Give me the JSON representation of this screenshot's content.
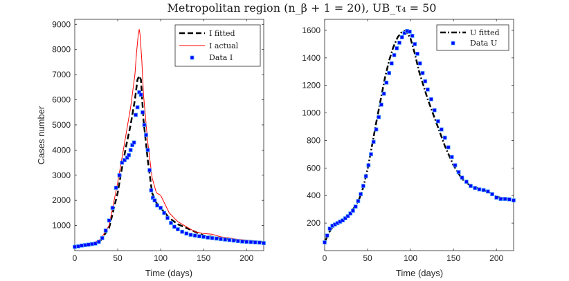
{
  "figure": {
    "title": "Metropolitan region (n_β + 1 = 20), UB_τ₄ = 50"
  },
  "chart_data": [
    {
      "type": "line",
      "xlabel": "Time (days)",
      "ylabel": "Cases number",
      "xlim": [
        0,
        220
      ],
      "ylim": [
        0,
        9200
      ],
      "xticks": [
        0,
        50,
        100,
        150,
        200
      ],
      "yticks": [
        1000,
        2000,
        3000,
        4000,
        5000,
        6000,
        7000,
        8000,
        9000
      ],
      "grid": false,
      "legend_position": "top-right",
      "series": [
        {
          "name": "I fitted",
          "style": "dashed",
          "color": "#000000",
          "x": [
            0,
            10,
            20,
            30,
            40,
            50,
            55,
            60,
            65,
            70,
            73,
            75,
            77,
            80,
            85,
            90,
            95,
            100,
            110,
            120,
            130,
            140,
            150,
            160,
            170,
            180,
            190,
            200,
            210,
            220
          ],
          "y": [
            150,
            200,
            260,
            400,
            900,
            2300,
            3300,
            4200,
            5000,
            6000,
            6800,
            6950,
            6800,
            5200,
            3600,
            2300,
            1900,
            1700,
            1300,
            1050,
            900,
            750,
            600,
            550,
            500,
            450,
            420,
            390,
            370,
            340
          ]
        },
        {
          "name": "I actual",
          "style": "solid",
          "color": "#ff0000",
          "x": [
            0,
            10,
            20,
            30,
            40,
            50,
            55,
            60,
            65,
            70,
            72,
            74,
            75,
            76,
            78,
            80,
            85,
            90,
            95,
            100,
            110,
            120,
            130,
            140,
            150,
            160,
            170,
            180,
            190,
            200,
            210,
            220
          ],
          "y": [
            150,
            200,
            280,
            450,
            1000,
            2700,
            3700,
            4700,
            5700,
            7000,
            7900,
            8600,
            8800,
            8600,
            7600,
            6200,
            4300,
            2900,
            2300,
            2200,
            1500,
            1150,
            950,
            750,
            680,
            650,
            550,
            500,
            450,
            420,
            390,
            350
          ]
        },
        {
          "name": "Data I",
          "style": "markers",
          "color": "#0000ff",
          "x": [
            0,
            4,
            8,
            12,
            16,
            20,
            24,
            28,
            32,
            36,
            40,
            44,
            48,
            52,
            55,
            58,
            61,
            63,
            65,
            67,
            69,
            71,
            73,
            75,
            77,
            79,
            81,
            83,
            85,
            87,
            89,
            91,
            93,
            96,
            100,
            104,
            108,
            112,
            116,
            120,
            125,
            130,
            135,
            140,
            145,
            150,
            155,
            160,
            165,
            170,
            175,
            180,
            185,
            190,
            195,
            200,
            205,
            210,
            215,
            220
          ],
          "y": [
            150,
            170,
            200,
            220,
            240,
            260,
            280,
            350,
            500,
            800,
            1200,
            1700,
            2500,
            3000,
            3500,
            3600,
            3700,
            3800,
            4000,
            4200,
            4300,
            5400,
            5700,
            6300,
            6200,
            5500,
            5000,
            4600,
            4000,
            3200,
            2400,
            2100,
            2000,
            1800,
            1700,
            1500,
            1300,
            1100,
            950,
            850,
            750,
            680,
            630,
            600,
            570,
            550,
            520,
            500,
            480,
            460,
            440,
            420,
            400,
            380,
            360,
            350,
            340,
            330,
            320,
            300
          ]
        }
      ]
    },
    {
      "type": "line",
      "xlabel": "Time (days)",
      "ylabel": "",
      "xlim": [
        0,
        220
      ],
      "ylim": [
        0,
        1680
      ],
      "xticks": [
        0,
        50,
        100,
        150,
        200
      ],
      "yticks": [
        200,
        400,
        600,
        800,
        1000,
        1200,
        1400,
        1600
      ],
      "grid": false,
      "legend_position": "top-right",
      "series": [
        {
          "name": "U fitted",
          "style": "dashdot",
          "color": "#000000",
          "x": [
            0,
            5,
            10,
            20,
            30,
            40,
            45,
            50,
            55,
            60,
            65,
            70,
            75,
            80,
            85,
            90,
            95,
            100,
            105,
            110,
            120,
            130,
            140,
            150,
            160,
            170,
            180,
            190,
            200,
            210,
            220
          ],
          "y": [
            60,
            130,
            180,
            220,
            270,
            370,
            460,
            590,
            760,
            930,
            1090,
            1250,
            1380,
            1480,
            1550,
            1590,
            1595,
            1540,
            1430,
            1300,
            1100,
            930,
            760,
            620,
            520,
            470,
            450,
            430,
            390,
            380,
            370
          ]
        },
        {
          "name": "Data U",
          "style": "markers",
          "color": "#0000ff",
          "x": [
            0,
            3,
            6,
            9,
            12,
            15,
            18,
            21,
            24,
            27,
            30,
            33,
            36,
            39,
            42,
            45,
            48,
            51,
            54,
            57,
            60,
            63,
            66,
            69,
            72,
            75,
            78,
            81,
            84,
            87,
            90,
            93,
            96,
            99,
            102,
            105,
            108,
            111,
            114,
            117,
            120,
            124,
            128,
            132,
            136,
            140,
            144,
            148,
            152,
            156,
            160,
            165,
            170,
            175,
            180,
            185,
            190,
            195,
            200,
            205,
            210,
            215,
            220
          ],
          "y": [
            60,
            110,
            160,
            180,
            190,
            200,
            210,
            220,
            235,
            250,
            270,
            290,
            320,
            360,
            410,
            470,
            540,
            620,
            700,
            790,
            880,
            970,
            1060,
            1140,
            1220,
            1290,
            1360,
            1420,
            1470,
            1510,
            1550,
            1580,
            1595,
            1590,
            1560,
            1500,
            1430,
            1360,
            1290,
            1230,
            1170,
            1100,
            1020,
            940,
            880,
            820,
            750,
            680,
            620,
            570,
            530,
            500,
            470,
            455,
            445,
            440,
            430,
            410,
            385,
            375,
            375,
            372,
            365
          ]
        }
      ]
    }
  ]
}
